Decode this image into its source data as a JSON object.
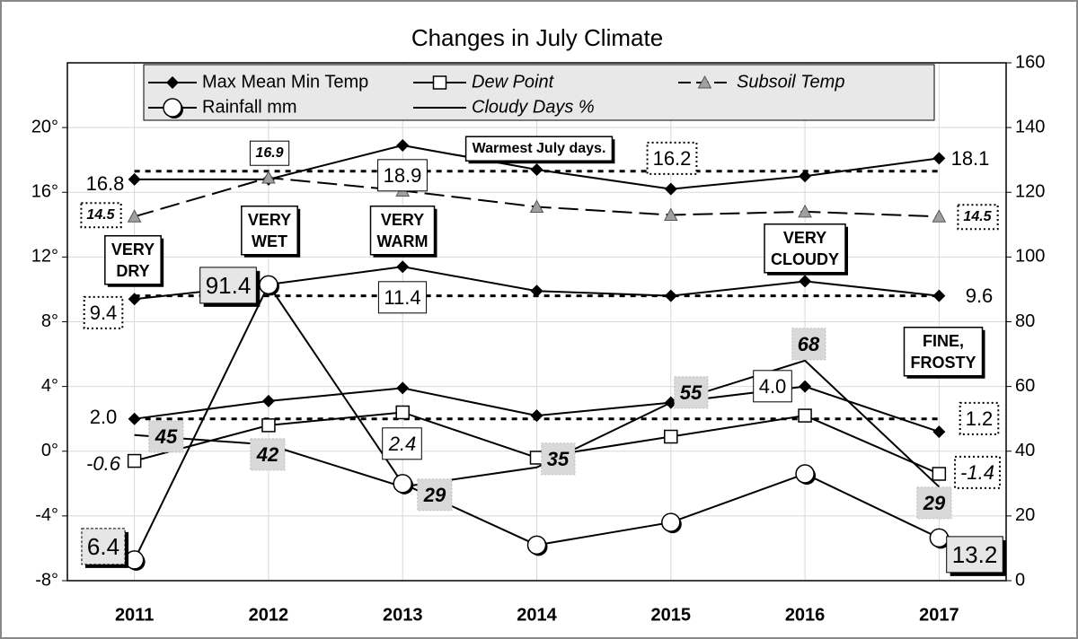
{
  "chart_data": {
    "type": "line",
    "title": "Changes in July Climate",
    "categories": [
      "2011",
      "2012",
      "2013",
      "2014",
      "2015",
      "2016",
      "2017"
    ],
    "ylim": [
      -8,
      24
    ],
    "yticks": [
      {
        "value": -8,
        "label": "-8°"
      },
      {
        "value": -4,
        "label": "-4°"
      },
      {
        "value": 0,
        "label": "0°"
      },
      {
        "value": 4,
        "label": "4°"
      },
      {
        "value": 8,
        "label": "8°"
      },
      {
        "value": 12,
        "label": "12°"
      },
      {
        "value": 16,
        "label": "16°"
      },
      {
        "value": 20,
        "label": "20°"
      }
    ],
    "y2lim": [
      0,
      160
    ],
    "y2ticks": [
      0,
      20,
      40,
      60,
      80,
      100,
      120,
      140,
      160
    ],
    "grid": true,
    "reference_lines": [
      17.3,
      9.6,
      2.0
    ],
    "series": [
      {
        "name": "Max Mean Min Temp",
        "color": "#000000",
        "marker": "diamond",
        "line_style": "solid",
        "values": [
          16.8,
          16.8,
          18.9,
          17.4,
          16.2,
          17.0,
          18.1
        ],
        "value_labels": [
          "16.8",
          null,
          "18.9",
          null,
          "16.2",
          null,
          "18.1"
        ]
      },
      {
        "color": "#000000",
        "marker": "diamond",
        "line_style": "solid",
        "values": [
          9.4,
          10.3,
          11.4,
          9.9,
          9.6,
          10.5,
          9.6
        ],
        "value_labels": [
          "9.4",
          null,
          "11.4",
          null,
          null,
          null,
          "9.6"
        ]
      },
      {
        "color": "#000000",
        "marker": "diamond",
        "line_style": "solid",
        "values": [
          2.0,
          3.1,
          3.9,
          2.2,
          3.0,
          4.0,
          1.2
        ],
        "value_labels": [
          "2.0",
          null,
          null,
          null,
          null,
          "4.0",
          "1.2"
        ]
      },
      {
        "name": "Dew Point",
        "color": "#000000",
        "marker": "square",
        "line_style": "solid",
        "values": [
          -0.6,
          1.6,
          2.4,
          -0.4,
          0.9,
          2.2,
          -1.4
        ],
        "value_labels": [
          "-0.6",
          null,
          "2.4",
          null,
          null,
          null,
          "-1.4"
        ]
      },
      {
        "name": "Subsoil Temp",
        "color": "#000000",
        "marker_color": "#a0a0a0",
        "marker": "triangle",
        "line_style": "dashed",
        "values": [
          14.5,
          16.9,
          16.1,
          15.1,
          14.6,
          14.8,
          14.5
        ],
        "value_labels": [
          "14.5",
          "16.9",
          null,
          null,
          null,
          null,
          "14.5"
        ]
      },
      {
        "name": "Rainfall mm",
        "color": "#000000",
        "marker": "circle",
        "line_style": "solid",
        "axis": "y2",
        "values": [
          6.4,
          91.4,
          30,
          11,
          18,
          33,
          13.2
        ],
        "value_labels": [
          "6.4",
          "91.4",
          null,
          null,
          null,
          null,
          "13.2"
        ]
      },
      {
        "name": "Cloudy Days %",
        "color": "#000000",
        "marker": "none",
        "line_style": "solid",
        "axis": "y2",
        "values": [
          45,
          42,
          29,
          35,
          55,
          68,
          29
        ],
        "value_labels": [
          "45",
          "42",
          "29",
          "35",
          "55",
          "68",
          "29"
        ]
      }
    ],
    "annotations": [
      [
        "Warmest July days."
      ],
      [
        "VERY",
        "DRY"
      ],
      [
        "VERY",
        "WET"
      ],
      [
        "VERY",
        "WARM"
      ],
      [
        "VERY",
        "CLOUDY"
      ],
      [
        "FINE,",
        "FROSTY"
      ]
    ]
  }
}
